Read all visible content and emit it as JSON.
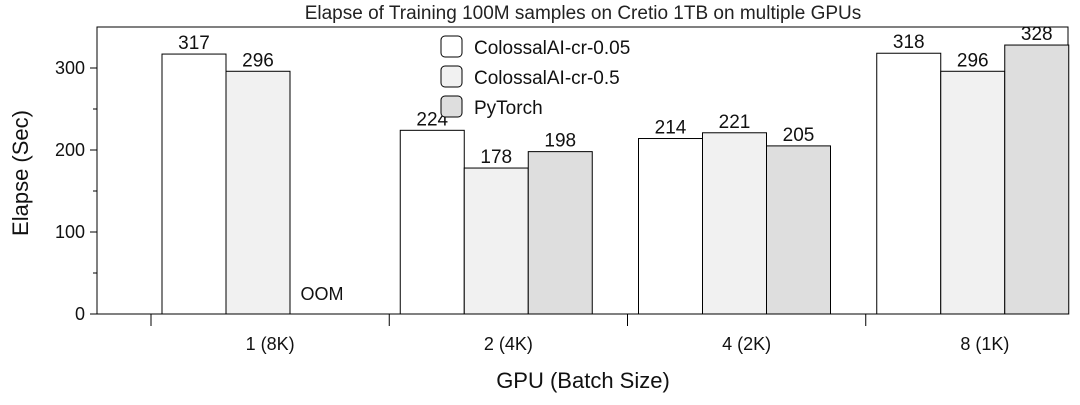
{
  "chart_data": {
    "type": "bar",
    "title": "Elapse of Training 100M samples on Cretio 1TB on multiple GPUs",
    "xlabel": "GPU (Batch Size)",
    "ylabel": "Elapse (Sec)",
    "ylim": [
      0,
      350
    ],
    "yticks": [
      0,
      100,
      200,
      300
    ],
    "categories": [
      "1 (8K)",
      "2 (4K)",
      "4 (2K)",
      "8 (1K)"
    ],
    "series": [
      {
        "name": "ColossalAI-cr-0.05",
        "values": [
          317,
          224,
          214,
          318
        ],
        "color": "#ffffff"
      },
      {
        "name": "ColossalAI-cr-0.5",
        "values": [
          296,
          178,
          221,
          296
        ],
        "color": "#f1f1f1"
      },
      {
        "name": "PyTorch",
        "values": [
          null,
          198,
          205,
          328
        ],
        "color": "#dedede"
      }
    ],
    "missing_label": "OOM",
    "legend_position": "top-center",
    "grid": false
  }
}
